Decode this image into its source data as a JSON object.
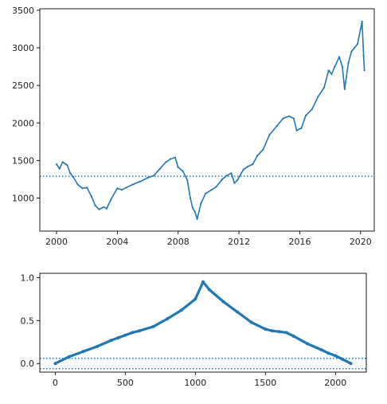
{
  "colors": {
    "series": "#1f77b4",
    "axis": "#000000",
    "text": "#222222",
    "background": "#ffffff"
  },
  "chart_data": [
    {
      "type": "line",
      "title": "",
      "xlabel": "",
      "ylabel": "",
      "grid": false,
      "xlim": [
        1998.9,
        2020.9
      ],
      "ylim": [
        560,
        3520
      ],
      "xticks": [
        2000,
        2004,
        2008,
        2012,
        2016,
        2020
      ],
      "yticks": [
        1000,
        1500,
        2000,
        2500,
        3000,
        3500
      ],
      "hlines": [
        {
          "y": 1290,
          "style": "dotted"
        }
      ],
      "series": [
        {
          "x": [
            2000.0,
            2000.2,
            2000.4,
            2000.7,
            2000.9,
            2001.1,
            2001.4,
            2001.7,
            2002.0,
            2002.3,
            2002.55,
            2002.8,
            2003.1,
            2003.3,
            2003.6,
            2004.0,
            2004.3,
            2004.6,
            2005.0,
            2005.5,
            2006.0,
            2006.4,
            2006.8,
            2007.2,
            2007.5,
            2007.8,
            2008.0,
            2008.3,
            2008.6,
            2008.8,
            2008.95,
            2009.1,
            2009.25,
            2009.5,
            2009.8,
            2010.2,
            2010.5,
            2010.9,
            2011.2,
            2011.5,
            2011.7,
            2011.9,
            2012.3,
            2012.6,
            2012.9,
            2013.2,
            2013.6,
            2014.0,
            2014.5,
            2014.9,
            2015.3,
            2015.6,
            2015.8,
            2016.1,
            2016.4,
            2016.8,
            2017.2,
            2017.6,
            2017.9,
            2018.1,
            2018.3,
            2018.6,
            2018.8,
            2018.95,
            2019.2,
            2019.4,
            2019.6,
            2019.8,
            2020.0,
            2020.1,
            2020.2,
            2020.25
          ],
          "y": [
            1450,
            1390,
            1480,
            1440,
            1330,
            1280,
            1180,
            1130,
            1140,
            1020,
            900,
            850,
            880,
            860,
            990,
            1130,
            1110,
            1140,
            1180,
            1220,
            1270,
            1300,
            1390,
            1480,
            1520,
            1540,
            1410,
            1360,
            1240,
            1000,
            870,
            820,
            720,
            930,
            1060,
            1110,
            1150,
            1250,
            1300,
            1330,
            1200,
            1240,
            1380,
            1420,
            1450,
            1560,
            1650,
            1840,
            1960,
            2060,
            2090,
            2060,
            1900,
            1930,
            2100,
            2180,
            2350,
            2470,
            2700,
            2650,
            2750,
            2880,
            2750,
            2450,
            2800,
            2950,
            3000,
            3050,
            3250,
            3350,
            2900,
            2700
          ]
        }
      ]
    },
    {
      "type": "line",
      "title": "",
      "xlabel": "",
      "ylabel": "",
      "grid": false,
      "xlim": [
        -110,
        2220
      ],
      "ylim": [
        -0.1,
        1.05
      ],
      "xticks": [
        0,
        500,
        1000,
        1500,
        2000
      ],
      "ytick_labels": [
        "0.0",
        "0.5",
        "1.0"
      ],
      "yticks": [
        0,
        0.5,
        1.0
      ],
      "hlines": [
        {
          "y": 0.06,
          "style": "dotted"
        },
        {
          "y": -0.06,
          "style": "dotted"
        }
      ],
      "series": [
        {
          "x": [
            0,
            100,
            200,
            300,
            400,
            450,
            500,
            550,
            600,
            700,
            800,
            900,
            1000,
            1055,
            1100,
            1200,
            1300,
            1400,
            1500,
            1550,
            1600,
            1650,
            1700,
            1800,
            1900,
            1950,
            2000,
            2050,
            2110
          ],
          "y": [
            0,
            0.08,
            0.14,
            0.2,
            0.27,
            0.3,
            0.33,
            0.36,
            0.38,
            0.43,
            0.52,
            0.62,
            0.75,
            0.95,
            0.86,
            0.72,
            0.6,
            0.48,
            0.4,
            0.38,
            0.37,
            0.36,
            0.32,
            0.23,
            0.16,
            0.12,
            0.09,
            0.05,
            0
          ]
        }
      ]
    }
  ]
}
